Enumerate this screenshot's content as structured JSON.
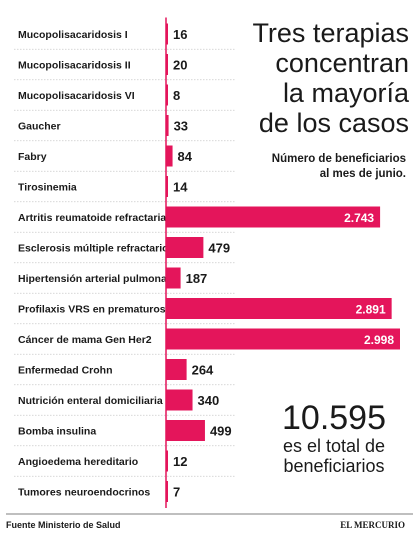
{
  "headline": {
    "lines": [
      "Tres terapias",
      "concentran",
      "la mayoría",
      "de los casos"
    ],
    "subtitle_lines": [
      "Número de beneficiarios",
      "al mes de junio."
    ]
  },
  "total": {
    "value": "10.595",
    "lines": [
      "es el total de",
      "beneficiarios"
    ]
  },
  "footer": {
    "source": "Fuente Ministerio de Salud",
    "brand": "EL MERCURIO"
  },
  "colors": {
    "bar": "#e4155b",
    "text": "#1a1a1a",
    "grid": "#c9c9c9"
  },
  "chart_data": {
    "type": "bar",
    "orientation": "horizontal",
    "categories": [
      "Mucopolisacaridosis I",
      "Mucopolisacaridosis II",
      "Mucopolisacaridosis VI",
      "Gaucher",
      "Fabry",
      "Tirosinemia",
      "Artritis reumatoide refractaria",
      "Esclerosis múltiple refractario",
      "Hipertensión arterial pulmonar",
      "Profilaxis VRS en prematuros",
      "Cáncer de mama Gen Her2",
      "Enfermedad Crohn",
      "Nutrición enteral domiciliaria",
      "Bomba insulina",
      "Angioedema hereditario",
      "Tumores neuroendocrinos"
    ],
    "values": [
      16,
      20,
      8,
      33,
      84,
      14,
      2743,
      479,
      187,
      2891,
      2998,
      264,
      340,
      499,
      12,
      7
    ],
    "labels": [
      "16",
      "20",
      "8",
      "33",
      "84",
      "14",
      "2.743",
      "479",
      "187",
      "2.891",
      "2.998",
      "264",
      "340",
      "499",
      "12",
      "7"
    ],
    "title": "Tres terapias concentran la mayoría de los casos",
    "subtitle": "Número de beneficiarios al mes de junio.",
    "xlim": [
      0,
      2998
    ],
    "grid": false
  }
}
